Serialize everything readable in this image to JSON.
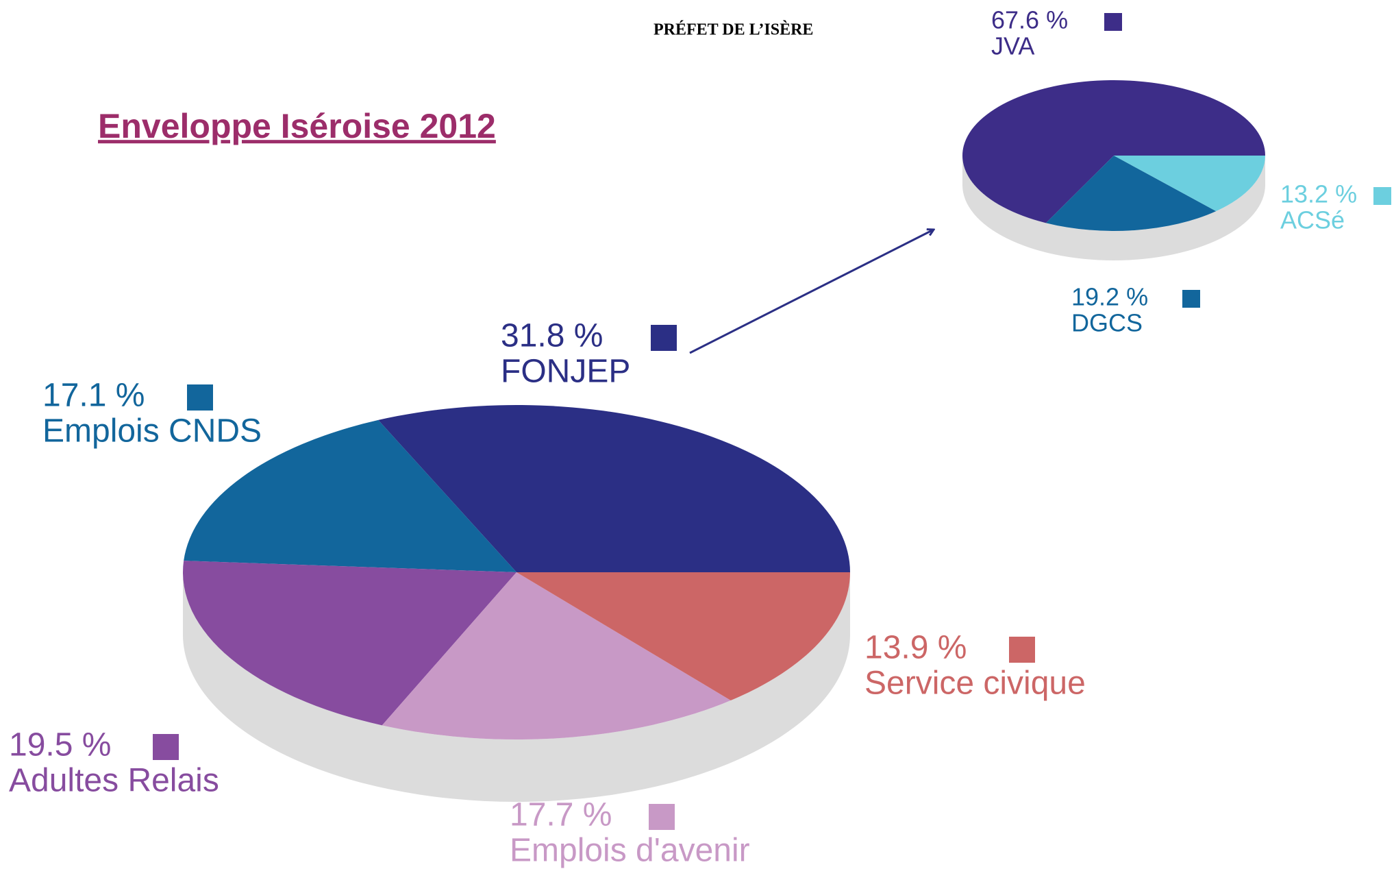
{
  "header": "PRÉFET DE L’ISÈRE",
  "chart_data": [
    {
      "type": "pie",
      "title": "Enveloppe Iséroise 2012",
      "categories": [
        "FONJEP",
        "Emplois CNDS",
        "Adultes Relais",
        "Emplois d'avenir",
        "Service civique"
      ],
      "values": [
        31.8,
        17.1,
        19.5,
        17.7,
        13.9
      ],
      "value_labels": [
        "31.8 %",
        "17.1 %",
        "19.5 %",
        "17.7 %",
        "13.9 %"
      ],
      "colors": [
        "#2b2f85",
        "#12669c",
        "#874c9f",
        "#c899c6",
        "#cc6666"
      ]
    },
    {
      "type": "pie",
      "categories": [
        "JVA",
        "DGCS",
        "ACSé"
      ],
      "values": [
        67.6,
        19.2,
        13.2
      ],
      "value_labels": [
        "67.6 %",
        "19.2 %",
        "13.2 %"
      ],
      "colors": [
        "#3d2d88",
        "#12669c",
        "#6ccfdf"
      ]
    }
  ]
}
